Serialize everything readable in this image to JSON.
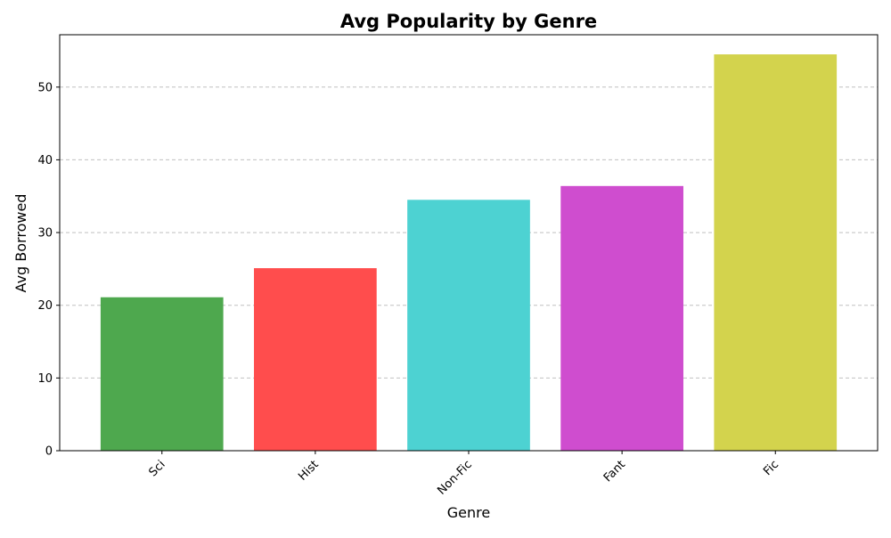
{
  "chart_data": {
    "type": "bar",
    "title": "Avg Popularity by Genre",
    "xlabel": "Genre",
    "ylabel": "Avg Borrowed",
    "categories": [
      "Sci",
      "Hist",
      "Non-Fic",
      "Fant",
      "Fic"
    ],
    "values": [
      21.1,
      25.1,
      34.5,
      36.4,
      54.5
    ],
    "colors": [
      "#4ea84e",
      "#ff4d4d",
      "#4dd2d2",
      "#cf4dcf",
      "#d3d34d"
    ],
    "ylim": [
      0,
      57.2
    ],
    "yticks": [
      0,
      10,
      20,
      30,
      40,
      50
    ],
    "grid": "y-dashed",
    "x_tick_rotation_deg": 45
  }
}
